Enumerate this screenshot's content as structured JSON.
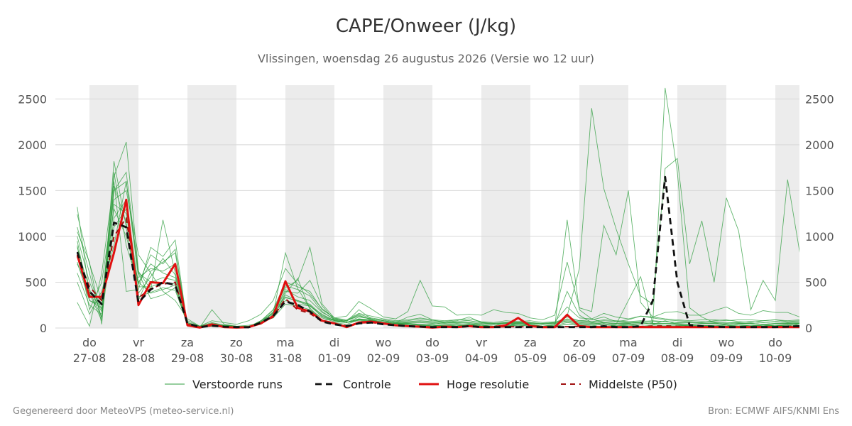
{
  "header": {
    "title": "CAPE/Onweer (J/kg)",
    "subtitle": "Vlissingen, woensdag 26 augustus 2026 (Versie wo 12 uur)"
  },
  "footer": {
    "left": "Gegenereerd door MeteoVPS (meteo-service.nl)",
    "right": "Bron: ECMWF AIFS/KNMI Ens"
  },
  "colors": {
    "ensemble": "#2e9e3e",
    "control": "#111111",
    "hires": "#e01010",
    "median": "#a01010",
    "weekend_band": "#ececec",
    "grid": "#d8d8d8",
    "tick_text": "#555555"
  },
  "chart_data": {
    "type": "line",
    "title": "CAPE/Onweer (J/kg)",
    "ylim": [
      0,
      2650
    ],
    "yticks": [
      0,
      500,
      1000,
      1500,
      2000,
      2500
    ],
    "xlim": [
      0,
      14.5
    ],
    "grid": true,
    "legend_position": "bottom",
    "x_ticks": [
      {
        "day": "do",
        "date": "27-08",
        "x": 0
      },
      {
        "day": "vr",
        "date": "28-08",
        "x": 1
      },
      {
        "day": "za",
        "date": "29-08",
        "x": 2
      },
      {
        "day": "zo",
        "date": "30-08",
        "x": 3
      },
      {
        "day": "ma",
        "date": "31-08",
        "x": 4
      },
      {
        "day": "di",
        "date": "01-09",
        "x": 5
      },
      {
        "day": "wo",
        "date": "02-09",
        "x": 6
      },
      {
        "day": "do",
        "date": "03-09",
        "x": 7
      },
      {
        "day": "vr",
        "date": "04-09",
        "x": 8
      },
      {
        "day": "za",
        "date": "05-09",
        "x": 9
      },
      {
        "day": "zo",
        "date": "06-09",
        "x": 10
      },
      {
        "day": "ma",
        "date": "07-09",
        "x": 11
      },
      {
        "day": "di",
        "date": "08-09",
        "x": 12
      },
      {
        "day": "wo",
        "date": "09-09",
        "x": 13
      },
      {
        "day": "do",
        "date": "10-09",
        "x": 14
      }
    ],
    "shaded_days": [
      [
        0,
        1
      ],
      [
        2,
        3
      ],
      [
        4,
        5
      ],
      [
        6,
        7
      ],
      [
        8,
        9
      ],
      [
        10,
        11
      ],
      [
        12,
        13
      ],
      [
        14,
        14.5
      ]
    ],
    "legend": [
      {
        "label": "Verstoorde runs",
        "style": "thin-green"
      },
      {
        "label": "Controle",
        "style": "dashed-black"
      },
      {
        "label": "Hoge resolutie",
        "style": "solid-red"
      },
      {
        "label": "Middelste (P50)",
        "style": "dashed-darkred"
      }
    ],
    "x_step_days": 0.25,
    "series": [
      {
        "name": "Controle",
        "kind": "control",
        "start": -0.25,
        "values": [
          830,
          400,
          260,
          1150,
          1100,
          280,
          420,
          500,
          470,
          50,
          10,
          25,
          15,
          10,
          8,
          60,
          130,
          290,
          250,
          180,
          70,
          40,
          20,
          50,
          60,
          40,
          30,
          20,
          15,
          10,
          10,
          10,
          20,
          10,
          10,
          10,
          10,
          10,
          10,
          10,
          10,
          10,
          10,
          20,
          10,
          10,
          20,
          300,
          1650,
          500,
          30,
          20,
          15,
          10,
          10,
          10,
          10,
          10,
          15,
          20,
          20,
          10,
          10,
          70,
          20
        ]
      },
      {
        "name": "Hoge resolutie",
        "kind": "hires",
        "start": -0.25,
        "values": [
          800,
          340,
          340,
          820,
          1400,
          250,
          500,
          490,
          700,
          30,
          5,
          40,
          10,
          5,
          10,
          50,
          130,
          510,
          220,
          180,
          80,
          50,
          10,
          60,
          70,
          50,
          30,
          20,
          15,
          5,
          15,
          10,
          20,
          10,
          10,
          30,
          110,
          20,
          10,
          10,
          145,
          20,
          10,
          10,
          10,
          10,
          10,
          10,
          10,
          10,
          10,
          10,
          10,
          10,
          10,
          10,
          10,
          10,
          10,
          10,
          10,
          10,
          10,
          10,
          10
        ]
      },
      {
        "name": "Middelste (P50)",
        "kind": "median",
        "start": -0.25,
        "values": [
          780,
          450,
          300,
          1000,
          1200,
          330,
          430,
          480,
          500,
          40,
          10,
          25,
          15,
          12,
          10,
          55,
          120,
          320,
          200,
          160,
          70,
          45,
          25,
          55,
          60,
          45,
          30,
          20,
          15,
          12,
          12,
          12,
          18,
          12,
          12,
          14,
          15,
          12,
          12,
          14,
          15,
          18,
          14,
          16,
          14,
          14,
          16,
          20,
          22,
          18,
          14,
          14,
          14,
          14,
          14,
          14,
          14,
          14,
          16,
          16,
          18,
          16,
          14,
          20,
          16
        ]
      }
    ],
    "ensemble": {
      "name": "Verstoorde runs",
      "start": -0.25,
      "members": [
        [
          1320,
          380,
          80,
          1820,
          1100,
          300,
          620,
          720,
          820,
          40,
          10,
          20,
          30,
          15,
          12,
          80,
          160,
          820,
          430,
          220,
          80,
          60,
          40,
          90,
          70,
          50,
          40,
          30,
          20,
          30,
          20,
          20,
          40,
          20,
          10,
          20,
          30,
          40,
          20,
          20,
          40,
          30,
          20,
          50,
          20,
          30,
          40,
          60,
          2620,
          1700,
          220,
          120,
          60,
          30,
          20,
          20,
          30,
          20,
          40,
          30,
          30,
          40,
          30,
          200,
          100
        ],
        [
          1050,
          720,
          40,
          1650,
          2030,
          620,
          420,
          1180,
          600,
          60,
          20,
          60,
          30,
          20,
          15,
          80,
          200,
          440,
          520,
          880,
          260,
          110,
          60,
          120,
          100,
          80,
          60,
          50,
          40,
          30,
          20,
          20,
          40,
          30,
          20,
          30,
          30,
          40,
          20,
          30,
          130,
          650,
          2400,
          1520,
          1080,
          700,
          350,
          260,
          1740,
          1850,
          700,
          1170,
          500,
          1420,
          1060,
          200,
          520,
          300,
          1620,
          820,
          1330,
          1810,
          1200,
          860,
          120
        ],
        [
          280,
          20,
          600,
          1600,
          400,
          420,
          880,
          780,
          960,
          20,
          5,
          200,
          40,
          20,
          30,
          50,
          120,
          380,
          540,
          200,
          80,
          100,
          80,
          140,
          90,
          60,
          50,
          40,
          30,
          40,
          60,
          60,
          50,
          30,
          20,
          60,
          30,
          20,
          10,
          20,
          1180,
          200,
          100,
          60,
          40,
          300,
          560,
          40,
          80,
          40,
          20,
          20,
          30,
          20,
          40,
          50,
          40,
          30,
          40,
          30,
          20,
          20,
          20,
          30,
          740
        ],
        [
          900,
          200,
          500,
          1400,
          1500,
          800,
          600,
          400,
          300,
          100,
          20,
          80,
          60,
          40,
          80,
          150,
          300,
          650,
          480,
          370,
          210,
          110,
          130,
          290,
          210,
          120,
          100,
          180,
          520,
          240,
          230,
          140,
          150,
          140,
          200,
          170,
          160,
          110,
          90,
          140,
          720,
          220,
          180,
          1120,
          800,
          1500,
          280,
          120,
          170,
          180,
          140,
          140,
          190,
          230,
          160,
          140,
          190,
          170,
          170,
          120,
          200,
          160,
          170,
          140,
          160
        ],
        [
          1100,
          600,
          100,
          1500,
          1700,
          600,
          320,
          360,
          440,
          30,
          15,
          50,
          30,
          20,
          20,
          60,
          180,
          340,
          290,
          240,
          150,
          80,
          60,
          100,
          90,
          70,
          50,
          40,
          30,
          20,
          30,
          40,
          30,
          20,
          20,
          20,
          60,
          30,
          20,
          40,
          400,
          140,
          60,
          40,
          30,
          50,
          20,
          30,
          30,
          30,
          20,
          30,
          20,
          20,
          20,
          30,
          20,
          30,
          20,
          50,
          30,
          20,
          20,
          20,
          30
        ],
        [
          700,
          400,
          120,
          1100,
          1300,
          340,
          390,
          440,
          410,
          50,
          15,
          30,
          20,
          18,
          15,
          70,
          110,
          260,
          240,
          200,
          110,
          70,
          60,
          80,
          70,
          50,
          40,
          40,
          30,
          30,
          20,
          30,
          30,
          20,
          20,
          30,
          30,
          30,
          20,
          20,
          40,
          30,
          20,
          20,
          30,
          30,
          20,
          20,
          20,
          20,
          30,
          30,
          20,
          20,
          20,
          30,
          20,
          30,
          20,
          20,
          20,
          20,
          20,
          20,
          20
        ],
        [
          950,
          300,
          250,
          1300,
          1000,
          500,
          700,
          600,
          550,
          80,
          20,
          40,
          20,
          10,
          10,
          40,
          150,
          400,
          380,
          520,
          240,
          90,
          70,
          200,
          100,
          80,
          60,
          120,
          150,
          90,
          60,
          80,
          120,
          60,
          40,
          60,
          50,
          60,
          40,
          60,
          120,
          80,
          90,
          120,
          70,
          90,
          130,
          110,
          90,
          80,
          70,
          60,
          80,
          90,
          70,
          60,
          80,
          90,
          70,
          80,
          90,
          60,
          80,
          100,
          90
        ],
        [
          1000,
          500,
          200,
          1700,
          900,
          480,
          800,
          700,
          860,
          40,
          10,
          30,
          20,
          20,
          20,
          60,
          170,
          460,
          420,
          350,
          180,
          90,
          80,
          150,
          110,
          90,
          70,
          80,
          100,
          80,
          70,
          90,
          80,
          60,
          50,
          60,
          70,
          60,
          50,
          60,
          90,
          70,
          60,
          80,
          70,
          60,
          70,
          80,
          70,
          60,
          60,
          70,
          60,
          50,
          60,
          70,
          60,
          70,
          60,
          60,
          70,
          60,
          60,
          70,
          60
        ],
        [
          600,
          250,
          150,
          1200,
          1400,
          450,
          450,
          500,
          480,
          30,
          10,
          20,
          15,
          10,
          10,
          50,
          120,
          300,
          260,
          240,
          130,
          80,
          60,
          90,
          80,
          60,
          50,
          50,
          40,
          30,
          30,
          30,
          40,
          30,
          20,
          30,
          40,
          30,
          20,
          30,
          60,
          40,
          30,
          40,
          30,
          40,
          50,
          40,
          30,
          30,
          30,
          30,
          30,
          30,
          30,
          30,
          30,
          30,
          30,
          30,
          30,
          30,
          30,
          30,
          30
        ],
        [
          1240,
          700,
          300,
          1500,
          1600,
          550,
          650,
          620,
          700,
          60,
          20,
          40,
          25,
          20,
          15,
          70,
          200,
          500,
          450,
          400,
          200,
          110,
          90,
          160,
          130,
          100,
          80,
          90,
          110,
          90,
          80,
          90,
          100,
          70,
          60,
          80,
          70,
          80,
          60,
          70,
          230,
          110,
          100,
          160,
          120,
          100,
          130,
          120,
          100,
          90,
          80,
          90,
          90,
          80,
          90,
          90,
          80,
          90,
          80,
          90,
          100,
          80,
          90,
          100,
          90
        ],
        [
          500,
          150,
          400,
          900,
          1600,
          600,
          500,
          550,
          520,
          40,
          10,
          25,
          20,
          15,
          12,
          60,
          140,
          330,
          300,
          260,
          140,
          85,
          60,
          95,
          85,
          60,
          50,
          60,
          70,
          60,
          50,
          60,
          60,
          50,
          40,
          50,
          60,
          50,
          40,
          50,
          80,
          60,
          50,
          60,
          50,
          60,
          60,
          50,
          50,
          50,
          40,
          50,
          50,
          40,
          50,
          50,
          40,
          50,
          50,
          50,
          60,
          50,
          50,
          60,
          50
        ],
        [
          880,
          420,
          180,
          1350,
          1250,
          380,
          560,
          760,
          580,
          50,
          20,
          35,
          25,
          18,
          14,
          65,
          160,
          420,
          340,
          300,
          170,
          100,
          80,
          130,
          100,
          80,
          60,
          70,
          80,
          70,
          60,
          70,
          80,
          60,
          50,
          60,
          60,
          60,
          50,
          60,
          100,
          80,
          70,
          90,
          80,
          70,
          80,
          70,
          70,
          60,
          60,
          60,
          70,
          60,
          60,
          70,
          60,
          70,
          60,
          70,
          80,
          60,
          70,
          80,
          70
        ],
        [
          720,
          300,
          220,
          1550,
          1150,
          500,
          380,
          420,
          470,
          35,
          12,
          30,
          20,
          15,
          12,
          55,
          130,
          360,
          300,
          250,
          120,
          80,
          60,
          100,
          80,
          60,
          50,
          60,
          60,
          50,
          40,
          50,
          60,
          40,
          40,
          50,
          50,
          50,
          40,
          50,
          70,
          50,
          40,
          60,
          50,
          50,
          60,
          50,
          50,
          40,
          40,
          50,
          50,
          40,
          50,
          50,
          40,
          50,
          50,
          50,
          60,
          50,
          50,
          60,
          50
        ]
      ]
    }
  }
}
